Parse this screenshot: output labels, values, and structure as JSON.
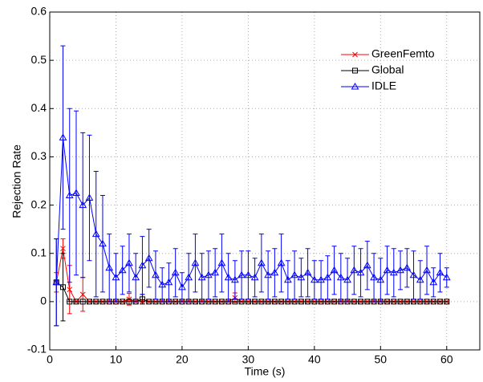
{
  "chart_data": {
    "type": "line",
    "x_label": "Time (s)",
    "y_label": "Rejection Rate",
    "x": [
      1,
      2,
      3,
      4,
      5,
      6,
      7,
      8,
      9,
      10,
      11,
      12,
      13,
      14,
      15,
      16,
      17,
      18,
      19,
      20,
      21,
      22,
      23,
      24,
      25,
      26,
      27,
      28,
      29,
      30,
      31,
      32,
      33,
      34,
      35,
      36,
      37,
      38,
      39,
      40,
      41,
      42,
      43,
      44,
      45,
      46,
      47,
      48,
      49,
      50,
      51,
      52,
      53,
      54,
      55,
      56,
      57,
      58,
      59,
      60
    ],
    "xlim": [
      0,
      65
    ],
    "xticks": [
      0,
      10,
      20,
      30,
      40,
      50,
      60
    ],
    "ylim": [
      -0.1,
      0.6
    ],
    "yticks": [
      -0.1,
      0,
      0.1,
      0.2,
      0.3,
      0.4,
      0.5,
      0.6
    ],
    "grid": true,
    "legend": "top-right",
    "series": [
      {
        "name": "GreenFemto",
        "color": "#ff0000",
        "marker": "x",
        "values": [
          0.04,
          0.11,
          0.025,
          0,
          0.015,
          0,
          0,
          0,
          0,
          0,
          0,
          0.005,
          0,
          0,
          0,
          0,
          0,
          0,
          0,
          0,
          0,
          0,
          0,
          0,
          0,
          0,
          0,
          0.008,
          0,
          0,
          0,
          0,
          0,
          0,
          0,
          0,
          0,
          0,
          0,
          0,
          0,
          0,
          0,
          0,
          0,
          0,
          0,
          0,
          0,
          0,
          0,
          0,
          0,
          0,
          0,
          0,
          0,
          0,
          0,
          0
        ],
        "errors": [
          0.02,
          0.02,
          0.05,
          0,
          0.035,
          0,
          0,
          0,
          0,
          0,
          0,
          0.012,
          0,
          0,
          0,
          0,
          0,
          0,
          0,
          0,
          0,
          0,
          0,
          0,
          0,
          0,
          0,
          0.01,
          0,
          0,
          0,
          0,
          0,
          0,
          0,
          0,
          0,
          0,
          0,
          0,
          0,
          0,
          0,
          0,
          0,
          0,
          0,
          0,
          0,
          0,
          0,
          0,
          0,
          0,
          0,
          0,
          0,
          0,
          0,
          0
        ]
      },
      {
        "name": "Global",
        "color": "#000000",
        "marker": "square",
        "values": [
          0.04,
          0.03,
          0,
          0,
          0,
          0,
          0,
          0,
          0,
          0,
          0,
          0,
          0,
          0.005,
          0,
          0,
          0,
          0,
          0,
          0,
          0,
          0,
          0,
          0,
          0,
          0,
          0,
          0,
          0,
          0,
          0,
          0,
          0,
          0,
          0,
          0,
          0,
          0,
          0,
          0,
          0,
          0,
          0,
          0,
          0,
          0,
          0,
          0,
          0,
          0,
          0,
          0,
          0,
          0,
          0,
          0,
          0,
          0,
          0,
          0
        ],
        "errors": [
          0.09,
          0.07,
          0,
          0,
          0,
          0,
          0,
          0,
          0,
          0,
          0,
          0,
          0,
          0.01,
          0,
          0,
          0,
          0,
          0,
          0,
          0,
          0,
          0,
          0,
          0,
          0,
          0,
          0,
          0,
          0,
          0,
          0,
          0,
          0,
          0,
          0,
          0,
          0,
          0,
          0,
          0,
          0,
          0,
          0,
          0,
          0,
          0,
          0,
          0,
          0,
          0,
          0,
          0,
          0,
          0,
          0,
          0,
          0,
          0,
          0
        ]
      },
      {
        "name": "IDLE",
        "color": "#0000ff",
        "marker": "triangle",
        "values": [
          0.04,
          0.34,
          0.22,
          0.225,
          0.2,
          0.215,
          0.14,
          0.12,
          0.07,
          0.05,
          0.065,
          0.08,
          0.05,
          0.075,
          0.09,
          0.055,
          0.035,
          0.04,
          0.06,
          0.03,
          0.05,
          0.08,
          0.05,
          0.055,
          0.06,
          0.08,
          0.05,
          0.045,
          0.055,
          0.055,
          0.05,
          0.08,
          0.055,
          0.06,
          0.08,
          0.045,
          0.055,
          0.05,
          0.06,
          0.045,
          0.045,
          0.05,
          0.065,
          0.05,
          0.045,
          0.065,
          0.06,
          0.075,
          0.05,
          0.045,
          0.065,
          0.06,
          0.065,
          0.07,
          0.055,
          0.045,
          0.065,
          0.04,
          0.06,
          0.05
        ],
        "errors": [
          0.09,
          0.19,
          0.18,
          0.17,
          0.15,
          0.13,
          0.13,
          0.1,
          0.07,
          0.05,
          0.05,
          0.06,
          0.05,
          0.06,
          0.06,
          0.05,
          0.035,
          0.04,
          0.05,
          0.03,
          0.05,
          0.06,
          0.05,
          0.05,
          0.05,
          0.06,
          0.05,
          0.04,
          0.05,
          0.05,
          0.04,
          0.06,
          0.05,
          0.05,
          0.06,
          0.04,
          0.05,
          0.04,
          0.05,
          0.04,
          0.04,
          0.045,
          0.05,
          0.05,
          0.045,
          0.05,
          0.05,
          0.05,
          0.05,
          0.045,
          0.05,
          0.05,
          0.04,
          0.04,
          0.05,
          0.04,
          0.05,
          0.03,
          0.04,
          0.02
        ]
      }
    ]
  }
}
